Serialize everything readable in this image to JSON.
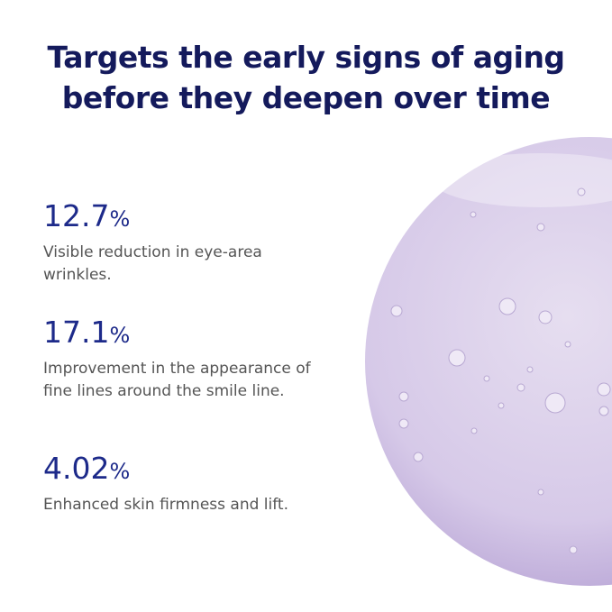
{
  "header": {
    "title_lines": [
      "Targets the early signs of aging",
      "before they deepen over time"
    ]
  },
  "stats": [
    {
      "value": "12.7",
      "unit": "%",
      "description_lines": [
        "Visible reduction in eye-area",
        "wrinkles."
      ]
    },
    {
      "value": "17.1",
      "unit": "%",
      "description_lines": [
        "Improvement in the appearance of",
        "fine lines around the smile line."
      ]
    },
    {
      "value": "4.02",
      "unit": "%",
      "description_lines": [
        "Enhanced skin firmness and lift."
      ]
    }
  ]
}
